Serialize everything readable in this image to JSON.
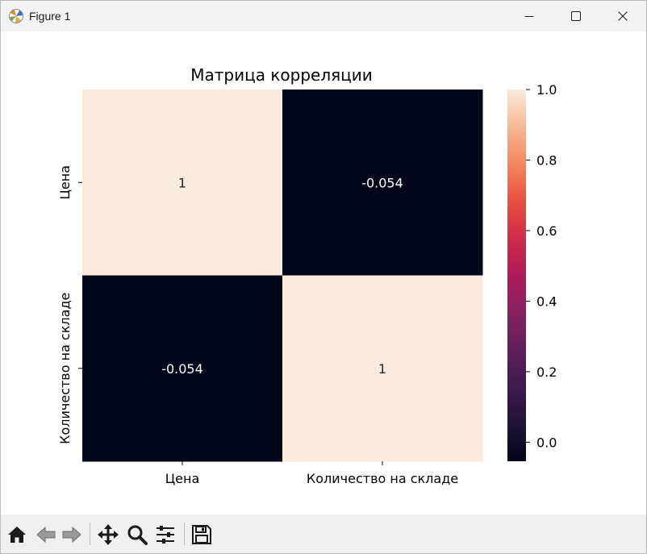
{
  "window": {
    "title": "Figure 1"
  },
  "toolbar": {
    "icons": [
      "home-icon",
      "back-icon",
      "forward-icon",
      "pan-icon",
      "zoom-icon",
      "configure-icon",
      "save-icon"
    ]
  },
  "chart_data": {
    "type": "heatmap",
    "title": "Матрица корреляции",
    "rows": [
      "Цена",
      "Количество на складе"
    ],
    "columns": [
      "Цена",
      "Количество на складе"
    ],
    "values": [
      [
        1,
        -0.054
      ],
      [
        -0.054,
        1
      ]
    ],
    "annotations": [
      [
        "1",
        "-0.054"
      ],
      [
        "-0.054",
        "1"
      ]
    ],
    "colorbar": {
      "range": [
        -0.054,
        1.0
      ],
      "ticks": [
        0.0,
        0.2,
        0.4,
        0.6,
        0.8,
        1.0
      ],
      "tick_labels": [
        "0.0",
        "0.2",
        "0.4",
        "0.6",
        "0.8",
        "1.0"
      ]
    },
    "colormap": "rocket",
    "colors": {
      "low": "#03051a",
      "high": "#faebdd"
    }
  }
}
